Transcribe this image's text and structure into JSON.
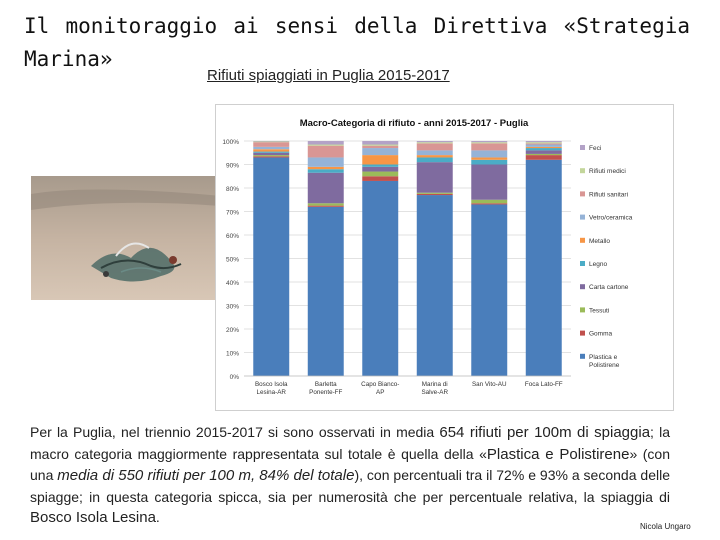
{
  "slide": {
    "title_line1": "Il monitoraggio ai sensi della Direttiva «Strategia",
    "title_line2": "Marina»",
    "subtitle": "Rifiuti spiaggiati in Puglia 2015-2017",
    "author": "Nicola Ungaro",
    "paragraph": {
      "p1": "Per la Puglia, nel triennio 2015-2017 si sono osservati in media ",
      "p2": "654 rifiuti per 100m di spiaggia",
      "p3": "; la macro categoria maggiormente rappresentata sul totale è quella della «",
      "p4": "Plastica e Polistirene",
      "p5": "» (con una ",
      "p6": "media di 550 rifiuti per 100 m, 84% del totale",
      "p7": "), con percentuali tra il 72% e 93% a seconda delle spiagge; in questa categoria spicca, sia per numerosità che per percentuale relativa, la spiaggia di ",
      "p8": "Bosco Isola Lesina",
      "p9": "."
    }
  },
  "chart_data": {
    "type": "bar",
    "stacked": true,
    "title": "Macro-Categoria di rifiuto - anni 2015-2017 - Puglia",
    "categories": [
      "Bosco Isola Lesina-AR",
      "Barletta Ponente-FF",
      "Capo Bianco-AP",
      "Marina di Salve-AR",
      "San Vito-AU",
      "Foca Lato-FF"
    ],
    "ylim": [
      0,
      100
    ],
    "yticks": [
      "0%",
      "10%",
      "20%",
      "30%",
      "40%",
      "50%",
      "60%",
      "70%",
      "80%",
      "90%",
      "100%"
    ],
    "grid": true,
    "legend": "right",
    "series": [
      {
        "name": "Plastica e Polistirene",
        "color": "#4a7ebb",
        "values": [
          93,
          72,
          83,
          77,
          73,
          92
        ]
      },
      {
        "name": "Gomma",
        "color": "#c0504d",
        "values": [
          0.5,
          0.5,
          2,
          0.5,
          0.5,
          2
        ]
      },
      {
        "name": "Tessuti",
        "color": "#9bbb59",
        "values": [
          0.5,
          1,
          2,
          0.5,
          1.5,
          0.5
        ]
      },
      {
        "name": "Carta cartone",
        "color": "#7f6b9f",
        "values": [
          1,
          13,
          2,
          13,
          15,
          1.5
        ]
      },
      {
        "name": "Legno",
        "color": "#4bacc6",
        "values": [
          0.5,
          1.5,
          1,
          2,
          2,
          1
        ]
      },
      {
        "name": "Metallo",
        "color": "#f79646",
        "values": [
          1,
          1,
          4,
          1,
          1,
          0.5
        ]
      },
      {
        "name": "Vetro/ceramica",
        "color": "#95b3d7",
        "values": [
          1,
          4,
          3,
          2,
          3,
          1
        ]
      },
      {
        "name": "Rifiuti sanitari",
        "color": "#d99694",
        "values": [
          2,
          5,
          1,
          3,
          3,
          0.5
        ]
      },
      {
        "name": "Rifiuti medici",
        "color": "#c3d69b",
        "values": [
          0.3,
          0.5,
          0.5,
          0.5,
          0.5,
          0.5
        ]
      },
      {
        "name": "Feci",
        "color": "#b3a2c7",
        "values": [
          0.2,
          1.5,
          1.5,
          0.5,
          0.5,
          0.5
        ]
      }
    ],
    "x_labels": [
      [
        "Bosco Isola",
        "Lesina-AR"
      ],
      [
        "Barletta",
        "Ponente-FF"
      ],
      [
        "Capo Bianco-",
        "AP"
      ],
      [
        "Marina di",
        "Salve-AR"
      ],
      [
        "San Vito-AU"
      ],
      [
        "Foca Lato-FF"
      ]
    ],
    "legend_labels": [
      [
        "Feci"
      ],
      [
        "Rifiuti medici"
      ],
      [
        "Rifiuti sanitari"
      ],
      [
        "Vetro/ceramica"
      ],
      [
        "Metallo"
      ],
      [
        "Legno"
      ],
      [
        "Carta cartone"
      ],
      [
        "Tessuti"
      ],
      [
        "Gomma"
      ],
      [
        "Plastica e",
        "Polistirene"
      ]
    ]
  }
}
